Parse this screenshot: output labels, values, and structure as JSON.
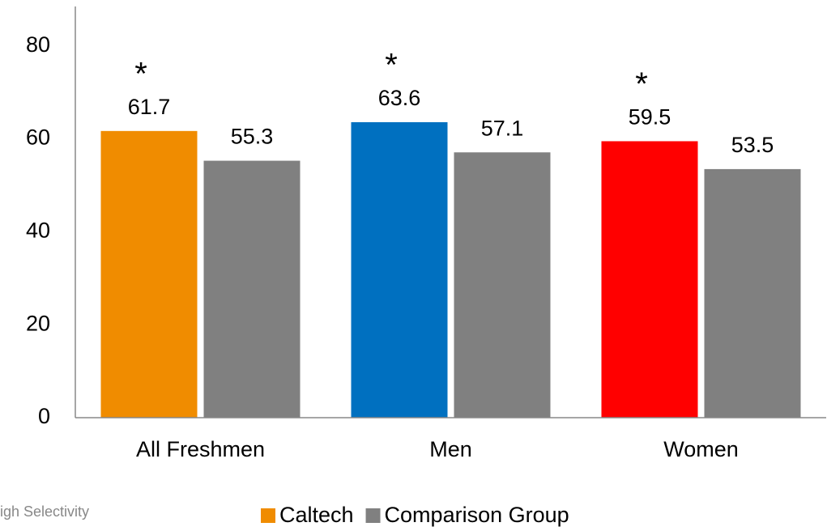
{
  "chart_data": {
    "type": "bar",
    "categories": [
      "All Freshmen",
      "Men",
      "Women"
    ],
    "series": [
      {
        "name": "Caltech",
        "color": "#f08c00",
        "colors": [
          "#f08c00",
          "#0070c0",
          "#ff0000"
        ],
        "values": [
          61.7,
          63.6,
          59.5
        ],
        "annotations": [
          "*",
          "*",
          "*"
        ]
      },
      {
        "name": "Comparison Group",
        "color": "#808080",
        "values": [
          55.3,
          57.1,
          53.5
        ]
      }
    ],
    "ylim": [
      0,
      88.5
    ],
    "yticks": [
      0,
      20,
      40,
      60,
      80
    ],
    "grid": false,
    "legend": "bottom",
    "footnote": "igh Selectivity"
  }
}
